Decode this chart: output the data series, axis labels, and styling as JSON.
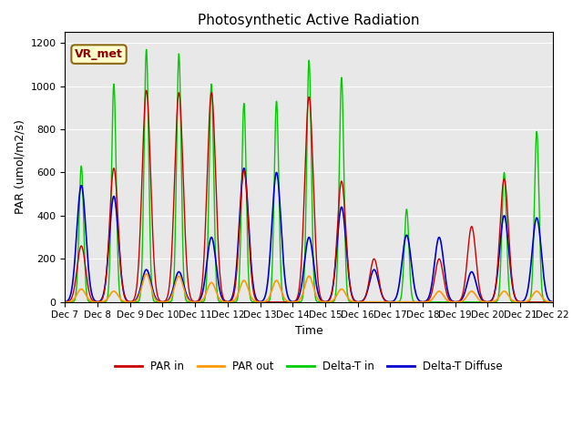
{
  "title": "Photosynthetic Active Radiation",
  "ylabel": "PAR (umol/m2/s)",
  "xlabel": "Time",
  "ylim": [
    0,
    1250
  ],
  "background_color": "#e8e8e8",
  "legend_label": "VR_met",
  "series_labels": [
    "PAR in",
    "PAR out",
    "Delta-T in",
    "Delta-T Diffuse"
  ],
  "series_colors": [
    "#cc0000",
    "#ff9900",
    "#00cc00",
    "#0000cc"
  ],
  "xtick_labels": [
    "Dec 7",
    "Dec 8",
    "Dec 9",
    "Dec 10",
    "Dec 11",
    "Dec 12",
    "Dec 13",
    "Dec 14",
    "Dec 15",
    "Dec 16",
    "Dec 17",
    "Dec 18",
    "Dec 19",
    "Dec 20",
    "Dec 21",
    "Dec 22"
  ],
  "days": 15,
  "day_peaks": {
    "PAR_in": [
      260,
      620,
      980,
      970,
      970,
      610,
      0,
      950,
      560,
      200,
      0,
      200,
      350,
      570,
      0
    ],
    "PAR_out": [
      60,
      50,
      130,
      120,
      90,
      100,
      100,
      120,
      60,
      0,
      0,
      50,
      50,
      50,
      50
    ],
    "Delta_T_in": [
      630,
      1010,
      1170,
      1150,
      1010,
      920,
      930,
      1120,
      1040,
      0,
      430,
      0,
      0,
      600,
      790
    ],
    "Delta_T_diff": [
      540,
      490,
      150,
      140,
      300,
      620,
      600,
      300,
      440,
      150,
      310,
      300,
      140,
      400,
      390
    ]
  }
}
